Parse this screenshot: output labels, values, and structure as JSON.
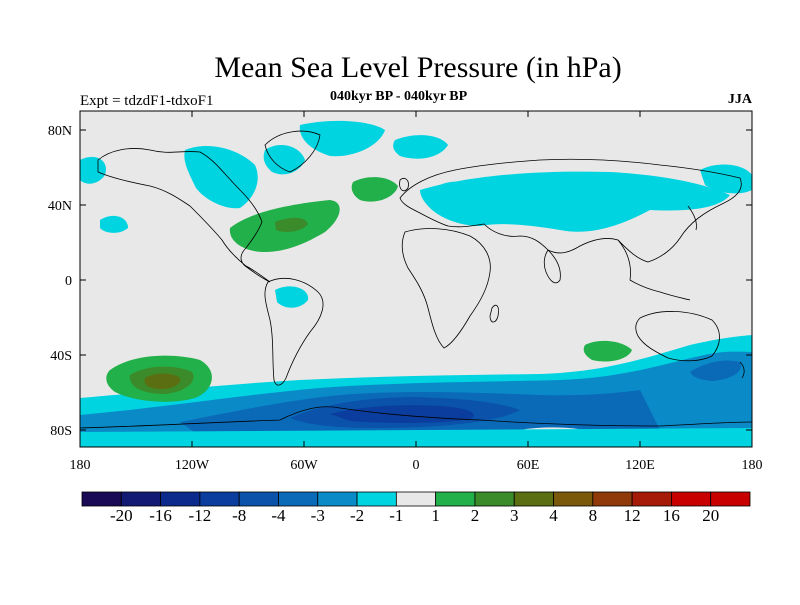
{
  "header": {
    "title": "Mean Sea Level Pressure (in hPa)",
    "left_label": "Expt = tdzdF1-tdxoF1",
    "center_label": "040kyr BP - 040kyr BP",
    "right_label": "JJA"
  },
  "map": {
    "projection": "cylindrical-equidistant",
    "lon_range": [
      -180,
      180
    ],
    "lat_range": [
      -90,
      90
    ],
    "lon_ticks": [
      "180",
      "120W",
      "60W",
      "0",
      "60E",
      "120E",
      "180"
    ],
    "lat_ticks": [
      "80N",
      "40N",
      "0",
      "40S",
      "80S"
    ],
    "ocean_background": "#e8e8e8",
    "coastline_color": "#000000"
  },
  "colorbar": {
    "labels": [
      "-20",
      "-16",
      "-12",
      "-8",
      "-4",
      "-3",
      "-2",
      "-1",
      "1",
      "2",
      "3",
      "4",
      "8",
      "12",
      "16",
      "20"
    ],
    "colors": [
      "#1a0a55",
      "#121a73",
      "#0c2a8c",
      "#0a3d9e",
      "#0b52ab",
      "#0a6ab8",
      "#0a8bc8",
      "#00d4e0",
      "#e8e8e8",
      "#22b04a",
      "#3b8b2a",
      "#5c6e12",
      "#7a5a0a",
      "#8f3a08",
      "#a61a08",
      "#c80000"
    ]
  }
}
